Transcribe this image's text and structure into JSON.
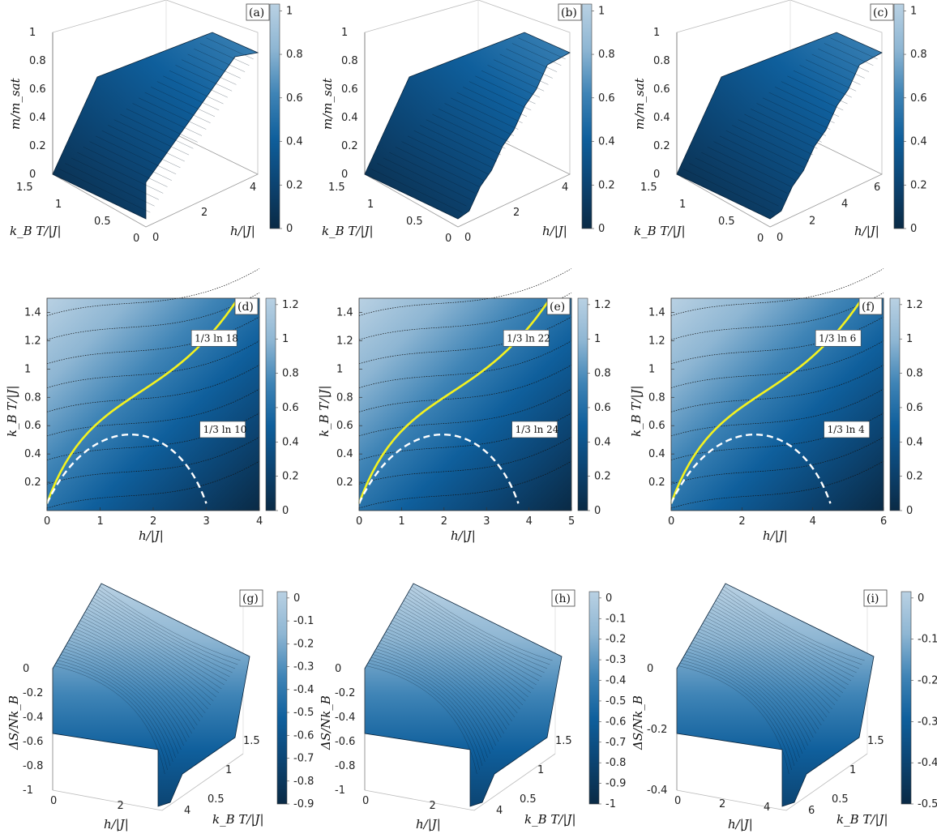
{
  "colormap": [
    "#0a2a45",
    "#0c4472",
    "#0f5f9c",
    "#3f84b6",
    "#8eb6d3",
    "#b9d1e3"
  ],
  "chart_data": [
    {
      "id": "a",
      "type": "surface3d",
      "label": "(a)",
      "zlabel": "m/m_sat",
      "xlabel": "h/|J|",
      "ylabel": "k_B T/|J|",
      "z_ticks": [
        "0",
        "0.2",
        "0.4",
        "0.6",
        "0.8",
        "1"
      ],
      "y_ticks": [
        "1.5",
        "1",
        "0.5",
        "0"
      ],
      "x_ticks": [
        "0",
        "2",
        "4"
      ],
      "colorbar_ticks": [
        "0",
        "0.2",
        "0.4",
        "0.6",
        "0.8",
        "1"
      ],
      "steps": 1
    },
    {
      "id": "b",
      "type": "surface3d",
      "label": "(b)",
      "zlabel": "m/m_sat",
      "xlabel": "h/|J|",
      "ylabel": "k_B T/|J|",
      "z_ticks": [
        "0",
        "0.2",
        "0.4",
        "0.6",
        "0.8",
        "1"
      ],
      "y_ticks": [
        "1.5",
        "1",
        "0.5",
        "0"
      ],
      "x_ticks": [
        "0",
        "2",
        "4"
      ],
      "colorbar_ticks": [
        "0",
        "0.2",
        "0.4",
        "0.6",
        "0.8",
        "1"
      ],
      "steps": 4
    },
    {
      "id": "c",
      "type": "surface3d",
      "label": "(c)",
      "zlabel": "m/m_sat",
      "xlabel": "h/|J|",
      "ylabel": "k_B T/|J|",
      "z_ticks": [
        "0",
        "0.2",
        "0.4",
        "0.6",
        "0.8",
        "1"
      ],
      "y_ticks": [
        "1.5",
        "1",
        "0.5",
        "0"
      ],
      "x_ticks": [
        "0",
        "2",
        "4",
        "6"
      ],
      "colorbar_ticks": [
        "0",
        "0.2",
        "0.4",
        "0.6",
        "0.8",
        "1"
      ],
      "steps": 4
    },
    {
      "id": "d",
      "type": "heatmap",
      "label": "(d)",
      "xlabel": "h/|J|",
      "ylabel": "k_B T/|J|",
      "xlim": [
        0,
        4
      ],
      "ylim": [
        0,
        1.5
      ],
      "x_ticks": [
        "0",
        "1",
        "2",
        "3",
        "4"
      ],
      "y_ticks": [
        "0.2",
        "0.4",
        "0.6",
        "0.8",
        "1",
        "1.2",
        "1.4"
      ],
      "colorbar_ticks": [
        "0",
        "0.2",
        "0.4",
        "0.6",
        "0.8",
        "1",
        "1.2"
      ],
      "annotations": [
        "1/3 ln 18",
        "1/3 ln 10"
      ]
    },
    {
      "id": "e",
      "type": "heatmap",
      "label": "(e)",
      "xlabel": "h/|J|",
      "ylabel": "k_B T/|J|",
      "xlim": [
        0,
        5
      ],
      "ylim": [
        0,
        1.5
      ],
      "x_ticks": [
        "0",
        "1",
        "2",
        "3",
        "4",
        "5"
      ],
      "y_ticks": [
        "0.2",
        "0.4",
        "0.6",
        "0.8",
        "1",
        "1.2",
        "1.4"
      ],
      "colorbar_ticks": [
        "0",
        "0.2",
        "0.4",
        "0.6",
        "0.8",
        "1",
        "1.2"
      ],
      "annotations": [
        "1/3 ln 22",
        "1/3 ln 24"
      ]
    },
    {
      "id": "f",
      "type": "heatmap",
      "label": "(f)",
      "xlabel": "h/|J|",
      "ylabel": "k_B T/|J|",
      "xlim": [
        0,
        6
      ],
      "ylim": [
        0,
        1.5
      ],
      "x_ticks": [
        "0",
        "2",
        "4",
        "6"
      ],
      "y_ticks": [
        "0.2",
        "0.4",
        "0.6",
        "0.8",
        "1",
        "1.2",
        "1.4"
      ],
      "colorbar_ticks": [
        "0",
        "0.2",
        "0.4",
        "0.6",
        "0.8",
        "1",
        "1.2"
      ],
      "annotations": [
        "1/3 ln 6",
        "1/3 ln 4"
      ]
    },
    {
      "id": "g",
      "type": "surface3d",
      "label": "(g)",
      "zlabel": "ΔS/Nk_B",
      "xlabel": "h/|J|",
      "ylabel": "k_B T/|J|",
      "z_ticks": [
        "-1",
        "-0.8",
        "-0.6",
        "-0.4",
        "-0.2",
        "0"
      ],
      "x_ticks": [
        "0",
        "2",
        "4"
      ],
      "y_ticks": [
        "0.5",
        "1",
        "1.5"
      ],
      "colorbar_ticks": [
        "-0.9",
        "-0.8",
        "-0.7",
        "-0.6",
        "-0.5",
        "-0.4",
        "-0.3",
        "-0.2",
        "-0.1",
        "0"
      ]
    },
    {
      "id": "h",
      "type": "surface3d",
      "label": "(h)",
      "zlabel": "ΔS/Nk_B",
      "xlabel": "h/|J|",
      "ylabel": "k_B T/|J|",
      "z_ticks": [
        "-1",
        "-0.8",
        "-0.6",
        "-0.4",
        "-0.2",
        "0"
      ],
      "x_ticks": [
        "0",
        "2",
        "4"
      ],
      "y_ticks": [
        "0.5",
        "1",
        "1.5"
      ],
      "colorbar_ticks": [
        "-1",
        "-0.9",
        "-0.8",
        "-0.7",
        "-0.6",
        "-0.5",
        "-0.4",
        "-0.3",
        "-0.2",
        "-0.1",
        "0"
      ]
    },
    {
      "id": "i",
      "type": "surface3d",
      "label": "(i)",
      "zlabel": "ΔS/Nk_B",
      "xlabel": "h/|J|",
      "ylabel": "k_B T/|J|",
      "z_ticks": [
        "-0.4",
        "-0.2",
        "0"
      ],
      "x_ticks": [
        "0",
        "2",
        "4",
        "6"
      ],
      "y_ticks": [
        "0.5",
        "1",
        "1.5"
      ],
      "colorbar_ticks": [
        "-0.5",
        "-0.4",
        "-0.3",
        "-0.2",
        "-0.1",
        "0"
      ]
    }
  ]
}
